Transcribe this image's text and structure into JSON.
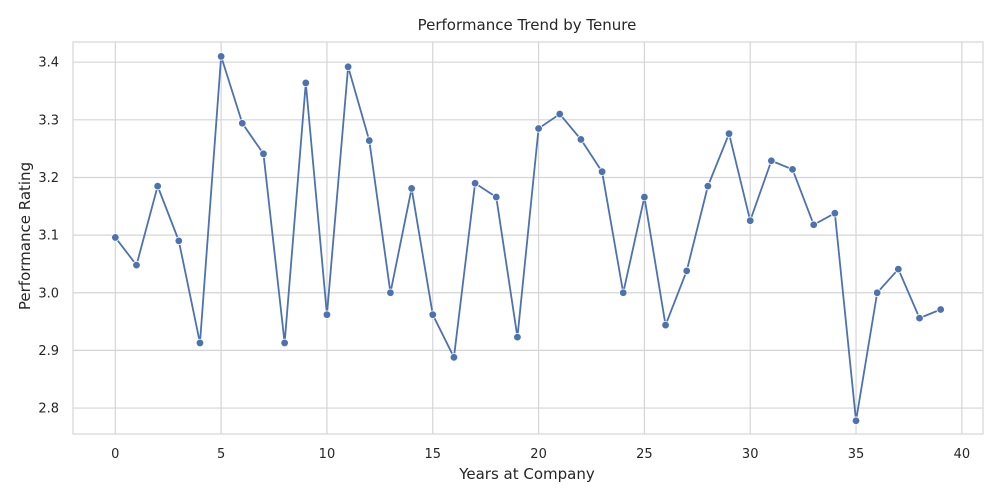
{
  "chart_data": {
    "type": "line",
    "title": "Performance Trend by Tenure",
    "xlabel": "Years at Company",
    "ylabel": "Performance Rating",
    "xlim": [
      -2,
      41
    ],
    "ylim": [
      2.755,
      3.435
    ],
    "xticks": [
      0,
      5,
      10,
      15,
      20,
      25,
      30,
      35,
      40
    ],
    "yticks": [
      2.8,
      2.9,
      3.0,
      3.1,
      3.2,
      3.3,
      3.4
    ],
    "xtick_labels": [
      "0",
      "5",
      "10",
      "15",
      "20",
      "25",
      "30",
      "35",
      "40"
    ],
    "ytick_labels": [
      "2.8",
      "2.9",
      "3.0",
      "3.1",
      "3.2",
      "3.3",
      "3.4"
    ],
    "grid": true,
    "legend": false,
    "series": [
      {
        "color": "#4c72b0",
        "marker": "circle",
        "x": [
          0,
          1,
          2,
          3,
          4,
          5,
          6,
          7,
          8,
          9,
          10,
          11,
          12,
          13,
          14,
          15,
          16,
          17,
          18,
          19,
          20,
          21,
          22,
          23,
          24,
          25,
          26,
          27,
          28,
          29,
          30,
          31,
          32,
          33,
          34,
          35,
          36,
          37,
          38,
          39
        ],
        "y": [
          3.096,
          3.048,
          3.185,
          3.09,
          2.913,
          3.41,
          3.294,
          3.241,
          2.913,
          3.364,
          2.962,
          3.392,
          3.264,
          3.0,
          3.181,
          2.962,
          2.888,
          3.19,
          3.166,
          2.923,
          3.285,
          3.31,
          3.266,
          3.21,
          3.0,
          3.166,
          2.944,
          3.038,
          3.185,
          3.276,
          3.125,
          3.229,
          3.214,
          3.118,
          3.138,
          2.778,
          3.0,
          3.041,
          2.956,
          2.971
        ]
      }
    ]
  }
}
